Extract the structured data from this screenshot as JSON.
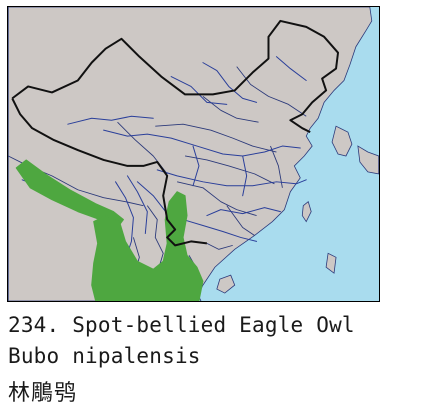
{
  "species": {
    "number_and_common_name": "234. Spot-bellied Eagle Owl",
    "scientific_name": "Bubo nipalensis",
    "chinese_name": "林鵰鸮"
  },
  "legend_colors": {
    "sea": "#a9dcee",
    "land": "#cdc8c5",
    "range": "#4ea740",
    "rivers": "#2a3f9a",
    "national_border": "#111111",
    "internal_borders": "#2c3a7a"
  }
}
